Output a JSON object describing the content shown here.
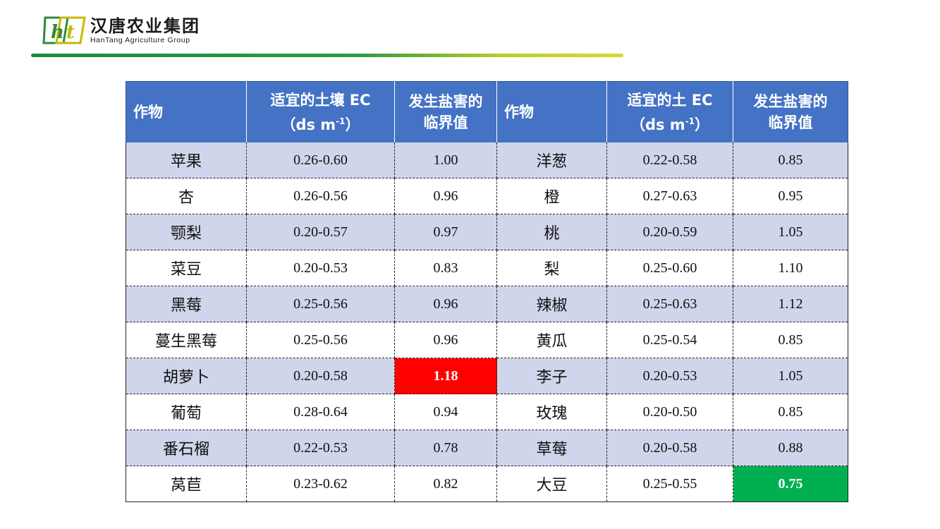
{
  "brand": {
    "logo_text": "ht",
    "name_cn": "汉唐农业集团",
    "name_en": "HanTang Agriculture Group"
  },
  "table": {
    "headers": [
      "作物",
      "适宜的土壤 EC（ds m-1）",
      "发生盐害的临界值",
      "作物",
      "适宜的土 EC（ds m-1）",
      "发生盐害的临界值"
    ],
    "header_parts": {
      "crop": "作物",
      "ec_left_line1": "适宜的土壤 EC",
      "ec_right_line1": "适宜的土 EC",
      "unit_open": "（ds m",
      "unit_exp": "-1",
      "unit_close": "）",
      "threshold_line1": "发生盐害的",
      "threshold_line2": "临界值"
    },
    "rows": [
      [
        "苹果",
        "0.26-0.60",
        "1.00",
        "洋葱",
        "0.22-0.58",
        "0.85"
      ],
      [
        "杏",
        "0.26-0.56",
        "0.96",
        "橙",
        "0.27-0.63",
        "0.95"
      ],
      [
        "颚梨",
        "0.20-0.57",
        "0.97",
        "桃",
        "0.20-0.59",
        "1.05"
      ],
      [
        "菜豆",
        "0.20-0.53",
        "0.83",
        "梨",
        "0.25-0.60",
        "1.10"
      ],
      [
        "黑莓",
        "0.25-0.56",
        "0.96",
        "辣椒",
        "0.25-0.63",
        "1.12"
      ],
      [
        "蔓生黑莓",
        "0.25-0.56",
        "0.96",
        "黄瓜",
        "0.25-0.54",
        "0.85"
      ],
      [
        "胡萝卜",
        "0.20-0.58",
        "1.18",
        "李子",
        "0.20-0.53",
        "1.05"
      ],
      [
        "葡萄",
        "0.28-0.64",
        "0.94",
        "玫瑰",
        "0.20-0.50",
        "0.85"
      ],
      [
        "番石榴",
        "0.22-0.53",
        "0.78",
        "草莓",
        "0.20-0.58",
        "0.88"
      ],
      [
        "莴苣",
        "0.23-0.62",
        "0.82",
        "大豆",
        "0.25-0.55",
        "0.75"
      ]
    ],
    "highlight_colors": {
      "max": "#ff0000",
      "min": "#00b050"
    },
    "header_color": "#4472c4",
    "stripe_color": "#cfd5ea"
  }
}
